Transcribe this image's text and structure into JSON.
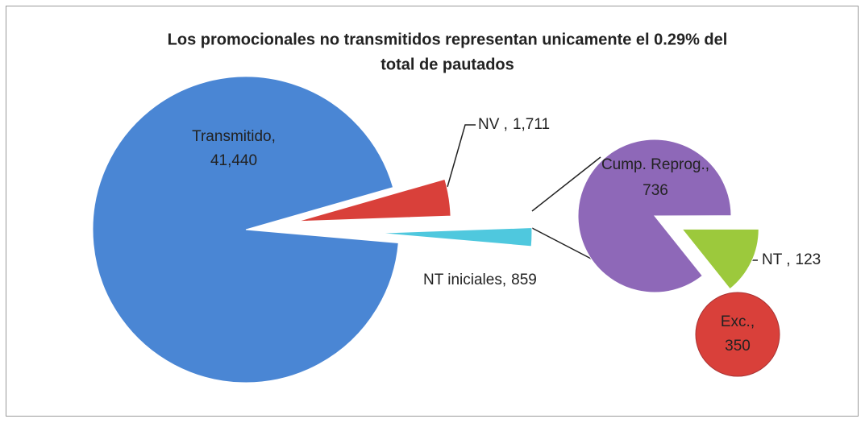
{
  "chart_data": [
    {
      "type": "pie",
      "title": "Los promocionales no transmitidos representan unicamente el 0.29% del",
      "subtitle": "total de pautados",
      "categories": [
        "Transmitido,",
        "NV ,",
        "NT iniciales,"
      ],
      "values": [
        41440,
        1711,
        859
      ],
      "value_labels": [
        "41,440",
        "1,711",
        "859"
      ],
      "colors": [
        "#4a86d4",
        "#d9403a",
        "#4fc8de"
      ]
    },
    {
      "type": "pie",
      "categories": [
        "Cump. Reprog.,",
        "NT ,"
      ],
      "values": [
        736,
        123
      ],
      "value_labels": [
        "736",
        "123"
      ],
      "colors": [
        "#8e68b8",
        "#9cc93c"
      ]
    },
    {
      "type": "circle",
      "categories": [
        "Exc.,"
      ],
      "values": [
        350
      ],
      "value_labels": [
        "350"
      ],
      "colors": [
        "#d9403a"
      ]
    }
  ]
}
